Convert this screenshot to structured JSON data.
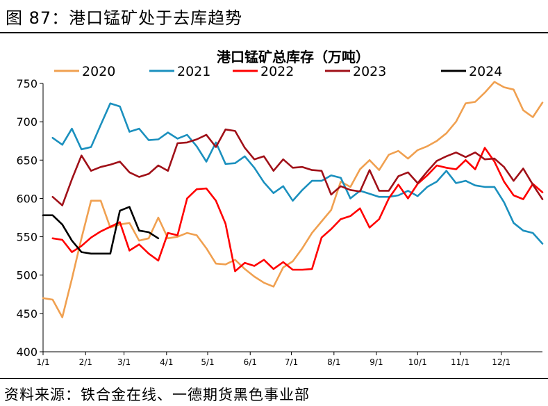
{
  "figure": {
    "label": "图 87：港口锰矿处于去库趋势",
    "source": "资料来源：铁合金在线、一德期货黑色事业部"
  },
  "chart_data": {
    "type": "line",
    "title": "港口锰矿总库存（万吨）",
    "xlabel": "",
    "ylabel": "",
    "ylim": [
      400,
      750
    ],
    "yticks": [
      400,
      450,
      500,
      550,
      600,
      650,
      700,
      750
    ],
    "xticks": [
      "1/1",
      "2/1",
      "3/1",
      "4/1",
      "5/1",
      "6/1",
      "7/1",
      "8/1",
      "9/1",
      "10/1",
      "11/1",
      "12/1"
    ],
    "x_unit": "week of year",
    "x_range": [
      0,
      52
    ],
    "grid": false,
    "legend": "top",
    "series": [
      {
        "name": "2020",
        "color": "#F0A050",
        "x": [
          0,
          1,
          2,
          3,
          4,
          5,
          6,
          7,
          8,
          9,
          10,
          11,
          12,
          13,
          14,
          15,
          16,
          17,
          18,
          19,
          20,
          21,
          22,
          23,
          24,
          25,
          26,
          27,
          28,
          29,
          30,
          31,
          32,
          33,
          34,
          35,
          36,
          37,
          38,
          39,
          40,
          41,
          42,
          43,
          44,
          45,
          46,
          47,
          48,
          49,
          50,
          51,
          52
        ],
        "values": [
          470,
          468,
          445,
          495,
          548,
          597,
          597,
          562,
          566,
          568,
          545,
          548,
          575,
          548,
          550,
          555,
          552,
          535,
          515,
          514,
          520,
          508,
          498,
          490,
          485,
          510,
          518,
          535,
          555,
          570,
          585,
          622,
          615,
          638,
          650,
          637,
          657,
          662,
          652,
          663,
          668,
          675,
          685,
          700,
          724,
          726,
          738,
          752,
          745,
          742,
          715,
          706,
          725
        ]
      },
      {
        "name": "2021",
        "color": "#1B90BE",
        "x": [
          1,
          2,
          3,
          4,
          5,
          6,
          7,
          8,
          9,
          10,
          11,
          12,
          13,
          14,
          15,
          16,
          17,
          18,
          19,
          20,
          21,
          22,
          23,
          24,
          25,
          26,
          27,
          28,
          29,
          30,
          31,
          32,
          33,
          34,
          35,
          36,
          37,
          38,
          39,
          40,
          41,
          42,
          43,
          44,
          45,
          46,
          47,
          48,
          49,
          50,
          51,
          52
        ],
        "values": [
          679,
          670,
          691,
          664,
          667,
          696,
          724,
          720,
          687,
          691,
          676,
          677,
          686,
          678,
          683,
          668,
          648,
          673,
          645,
          646,
          655,
          640,
          621,
          607,
          616,
          597,
          611,
          623,
          623,
          630,
          627,
          600,
          610,
          606,
          602,
          602,
          604,
          610,
          603,
          615,
          622,
          636,
          620,
          623,
          617,
          615,
          615,
          595,
          568,
          558,
          555,
          541
        ]
      },
      {
        "name": "2022",
        "color": "#FF0000",
        "x": [
          1,
          2,
          3,
          4,
          5,
          6,
          7,
          8,
          9,
          10,
          11,
          12,
          13,
          14,
          15,
          16,
          17,
          18,
          19,
          20,
          21,
          22,
          23,
          24,
          25,
          26,
          27,
          28,
          29,
          30,
          31,
          32,
          33,
          34,
          35,
          36,
          37,
          38,
          39,
          40,
          41,
          42,
          43,
          44,
          45,
          46,
          47,
          48,
          49,
          50,
          51,
          52
        ],
        "values": [
          548,
          546,
          530,
          538,
          549,
          557,
          563,
          569,
          532,
          540,
          528,
          519,
          555,
          552,
          600,
          612,
          613,
          597,
          567,
          505,
          516,
          512,
          520,
          508,
          517,
          507,
          507,
          508,
          549,
          560,
          573,
          577,
          587,
          562,
          573,
          600,
          618,
          600,
          619,
          630,
          643,
          640,
          638,
          650,
          638,
          666,
          648,
          622,
          604,
          599,
          619,
          608
        ]
      },
      {
        "name": "2023",
        "color": "#A01018",
        "x": [
          1,
          2,
          3,
          4,
          5,
          6,
          7,
          8,
          9,
          10,
          11,
          12,
          13,
          14,
          15,
          16,
          17,
          18,
          19,
          20,
          21,
          22,
          23,
          24,
          25,
          26,
          27,
          28,
          29,
          30,
          31,
          32,
          33,
          34,
          35,
          36,
          37,
          38,
          39,
          40,
          41,
          42,
          43,
          44,
          45,
          46,
          47,
          48,
          49,
          50,
          51,
          52
        ],
        "values": [
          602,
          591,
          625,
          656,
          636,
          641,
          644,
          648,
          634,
          628,
          632,
          643,
          636,
          672,
          673,
          677,
          683,
          667,
          690,
          688,
          666,
          651,
          655,
          636,
          651,
          640,
          641,
          637,
          636,
          605,
          616,
          611,
          609,
          637,
          610,
          610,
          629,
          634,
          620,
          635,
          649,
          655,
          660,
          654,
          660,
          651,
          652,
          641,
          623,
          639,
          618,
          599
        ]
      },
      {
        "name": "2024",
        "color": "#000000",
        "x": [
          0,
          1,
          2,
          3,
          4,
          5,
          6,
          7,
          8,
          9,
          10,
          11,
          12
        ],
        "values": [
          578,
          578,
          566,
          545,
          530,
          528,
          528,
          528,
          584,
          589,
          558,
          556,
          548
        ]
      }
    ]
  }
}
